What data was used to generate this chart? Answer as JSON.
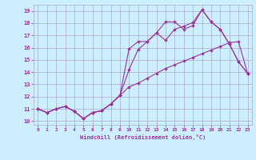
{
  "xlabel": "Windchill (Refroidissement éolien,°C)",
  "x": [
    0,
    1,
    2,
    3,
    4,
    5,
    6,
    7,
    8,
    9,
    10,
    11,
    12,
    13,
    14,
    15,
    16,
    17,
    18,
    19,
    20,
    21,
    22,
    23
  ],
  "line1": [
    11.0,
    10.7,
    11.0,
    11.2,
    10.8,
    10.2,
    10.7,
    10.85,
    11.4,
    12.1,
    15.9,
    16.5,
    16.5,
    17.2,
    18.1,
    18.1,
    17.5,
    17.8,
    19.1,
    18.1,
    17.5,
    16.3,
    14.85,
    13.9
  ],
  "line2": [
    11.0,
    10.7,
    11.0,
    11.2,
    10.8,
    10.2,
    10.7,
    10.85,
    11.4,
    12.1,
    14.2,
    15.85,
    16.5,
    17.2,
    16.6,
    17.5,
    17.75,
    18.05,
    19.1,
    18.1,
    17.5,
    16.3,
    14.85,
    13.9
  ],
  "line3": [
    11.0,
    10.7,
    11.0,
    11.2,
    10.8,
    10.2,
    10.7,
    10.85,
    11.4,
    12.1,
    12.8,
    13.1,
    13.5,
    13.9,
    14.3,
    14.6,
    14.9,
    15.2,
    15.5,
    15.8,
    16.1,
    16.4,
    16.5,
    13.9
  ],
  "line_color": "#993399",
  "bg_color": "#cceeff",
  "grid_color": "#aaaacc",
  "ylim": [
    9.7,
    19.5
  ],
  "xlim": [
    -0.5,
    23.5
  ],
  "yticks": [
    10,
    11,
    12,
    13,
    14,
    15,
    16,
    17,
    18,
    19
  ],
  "xticks": [
    0,
    1,
    2,
    3,
    4,
    5,
    6,
    7,
    8,
    9,
    10,
    11,
    12,
    13,
    14,
    15,
    16,
    17,
    18,
    19,
    20,
    21,
    22,
    23
  ]
}
